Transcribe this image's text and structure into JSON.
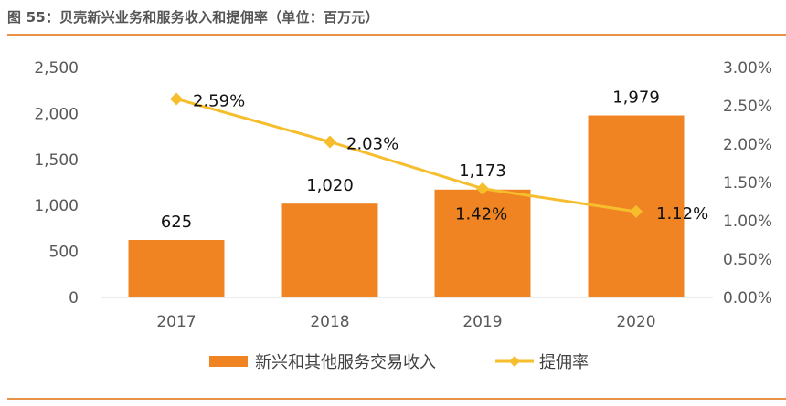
{
  "title": "图 55：贝壳新兴业务和服务收入和提佣率（单位：百万元）",
  "colors": {
    "bar": "#F08423",
    "line": "#F6BE2C",
    "rule": "#E8924A"
  },
  "chart_data": {
    "type": "bar+line",
    "categories": [
      "2017",
      "2018",
      "2019",
      "2020"
    ],
    "series": [
      {
        "name": "新兴和其他服务交易收入",
        "type": "bar",
        "axis": "left",
        "values": [
          625,
          1020,
          1173,
          1979
        ],
        "labels": [
          "625",
          "1,020",
          "1,173",
          "1,979"
        ]
      },
      {
        "name": "提佣率",
        "type": "line",
        "axis": "right",
        "values": [
          2.59,
          2.03,
          1.42,
          1.12
        ],
        "labels": [
          "2.59%",
          "2.03%",
          "1.42%",
          "1.12%"
        ]
      }
    ],
    "left_axis": {
      "range": [
        0,
        2500
      ],
      "ticks": [
        "0",
        "500",
        "1,000",
        "1,500",
        "2,000",
        "2,500"
      ]
    },
    "right_axis": {
      "range": [
        0,
        3.0
      ],
      "ticks": [
        "0.00%",
        "0.50%",
        "1.00%",
        "1.50%",
        "2.00%",
        "2.50%",
        "3.00%"
      ]
    },
    "grid": false,
    "legend": "bottom"
  }
}
